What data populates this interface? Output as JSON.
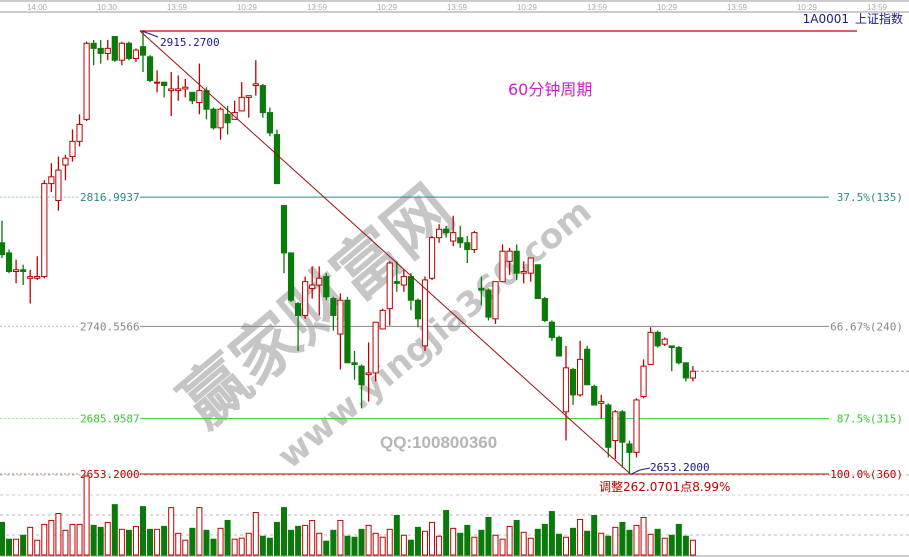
{
  "header": {
    "code": "1A0001",
    "name": "上证指数"
  },
  "chart_title": "60分钟周期",
  "watermark": {
    "brand": "赢家财富网",
    "url": "www.yingjia360.com",
    "qq": "QQ:100800360"
  },
  "colors": {
    "up": "#c00000",
    "down": "#0a7a0a",
    "peak_line": "#c00000",
    "trend_line": "#a01010",
    "fib_375": "#2a8a8a",
    "fib_6667": "#888888",
    "fib_875": "#33cc33",
    "fib_100": "#c00000",
    "label_navy": "#1a1a8c"
  },
  "chart_data": {
    "type": "candlestick",
    "time_ticks": [
      "14:00",
      "10:30",
      "13:59",
      "10:29",
      "13:59",
      "10:29",
      "13:59",
      "10:29",
      "13:59",
      "10:29",
      "13:59",
      "10:29",
      "13:59"
    ],
    "ylim": [
      2653.2,
      2915.27
    ],
    "peak": {
      "value": 2915.27,
      "label": "2915.2700"
    },
    "trough": {
      "value": 2653.2,
      "label": "2653.2000"
    },
    "retracement_note": "调整262.0701点8.99%",
    "levels": [
      {
        "value": 2816.9937,
        "left_label": "2816.9937",
        "right_label": "37.5%(135)",
        "color_key": "fib_375"
      },
      {
        "value": 2740.5566,
        "left_label": "2740.5566",
        "right_label": "66.67%(240)",
        "color_key": "fib_6667"
      },
      {
        "value": 2685.9587,
        "left_label": "2685.9587",
        "right_label": "87.5%(315)",
        "color_key": "fib_875"
      },
      {
        "value": 2653.2,
        "left_label": "2653.2000",
        "right_label": "100.0%(360)",
        "color_key": "fib_100"
      }
    ],
    "ohlc_fields": [
      "open",
      "high",
      "low",
      "close"
    ],
    "candles": [
      [
        2790,
        2803,
        2781,
        2783
      ],
      [
        2784,
        2786,
        2772,
        2773
      ],
      [
        2773,
        2780,
        2766,
        2774
      ],
      [
        2774,
        2777,
        2765,
        2773
      ],
      [
        2769,
        2774,
        2754,
        2770
      ],
      [
        2769,
        2782,
        2768,
        2770
      ],
      [
        2770,
        2827,
        2769,
        2825
      ],
      [
        2825,
        2837,
        2820,
        2829
      ],
      [
        2815,
        2841,
        2809,
        2833
      ],
      [
        2836,
        2842,
        2827,
        2840
      ],
      [
        2841,
        2857,
        2838,
        2850
      ],
      [
        2850,
        2866,
        2847,
        2860
      ],
      [
        2863,
        2909,
        2862,
        2908
      ],
      [
        2908,
        2910,
        2895,
        2905
      ],
      [
        2905,
        2910,
        2896,
        2902
      ],
      [
        2902,
        2910,
        2898,
        2905
      ],
      [
        2912,
        2912,
        2897,
        2898
      ],
      [
        2898,
        2909,
        2895,
        2908
      ],
      [
        2908,
        2909,
        2898,
        2899
      ],
      [
        2899,
        2905,
        2897,
        2904
      ],
      [
        2906,
        2915.27,
        2891,
        2901
      ],
      [
        2900,
        2901,
        2885,
        2886
      ],
      [
        2885,
        2892,
        2879,
        2885
      ],
      [
        2885,
        2885,
        2876,
        2883
      ],
      [
        2880,
        2891,
        2865,
        2881
      ],
      [
        2880,
        2889,
        2874,
        2881
      ],
      [
        2881,
        2887,
        2876,
        2882
      ],
      [
        2879,
        2879,
        2872,
        2874
      ],
      [
        2873,
        2896,
        2866,
        2880
      ],
      [
        2880,
        2882,
        2863,
        2869
      ],
      [
        2869,
        2870,
        2857,
        2858
      ],
      [
        2858,
        2870,
        2851,
        2869
      ],
      [
        2866,
        2871,
        2854,
        2861
      ],
      [
        2863,
        2874,
        2863,
        2867
      ],
      [
        2868,
        2885,
        2868,
        2876
      ],
      [
        2876,
        2877,
        2864,
        2877
      ],
      [
        2883,
        2898,
        2877,
        2884
      ],
      [
        2883,
        2884,
        2864,
        2867
      ],
      [
        2867,
        2870,
        2853,
        2855
      ],
      [
        2854,
        2857,
        2825,
        2825
      ],
      [
        2812,
        2812,
        2772,
        2784
      ],
      [
        2784,
        2784,
        2755,
        2756
      ],
      [
        2754,
        2755,
        2726,
        2747
      ],
      [
        2747,
        2770,
        2745,
        2767
      ],
      [
        2763,
        2776,
        2757,
        2765
      ],
      [
        2765,
        2776,
        2747,
        2769
      ],
      [
        2770,
        2772,
        2756,
        2758
      ],
      [
        2757,
        2758,
        2738,
        2747
      ],
      [
        2736,
        2760,
        2715,
        2756
      ],
      [
        2756,
        2758,
        2719,
        2719
      ],
      [
        2719,
        2726,
        2709,
        2718
      ],
      [
        2717,
        2718,
        2692,
        2706
      ],
      [
        2712,
        2731,
        2696,
        2713
      ],
      [
        2713,
        2743,
        2708,
        2743
      ],
      [
        2739,
        2751,
        2739,
        2750
      ],
      [
        2751,
        2779,
        2741,
        2778
      ],
      [
        2767,
        2779,
        2761,
        2766
      ],
      [
        2765,
        2774,
        2761,
        2770
      ],
      [
        2770,
        2772,
        2750,
        2756
      ],
      [
        2756,
        2757,
        2740,
        2745
      ],
      [
        2729,
        2770,
        2726,
        2768
      ],
      [
        2769,
        2794,
        2768,
        2793
      ],
      [
        2793,
        2801,
        2790,
        2798
      ],
      [
        2798,
        2800,
        2793,
        2796
      ],
      [
        2791,
        2806,
        2788,
        2796
      ],
      [
        2793,
        2800,
        2787,
        2790
      ],
      [
        2790,
        2794,
        2778,
        2786
      ],
      [
        2786,
        2797,
        2784,
        2796
      ],
      [
        2763,
        2770,
        2753,
        2762
      ],
      [
        2762,
        2763,
        2744,
        2746
      ],
      [
        2745,
        2767,
        2742,
        2767
      ],
      [
        2767,
        2789,
        2767,
        2785
      ],
      [
        2779,
        2787,
        2771,
        2785
      ],
      [
        2785,
        2789,
        2768,
        2772
      ],
      [
        2772,
        2779,
        2766,
        2773
      ],
      [
        2772,
        2781,
        2767,
        2781
      ],
      [
        2777,
        2777,
        2757,
        2757
      ],
      [
        2757,
        2758,
        2743,
        2744
      ],
      [
        2743,
        2744,
        2732,
        2734
      ],
      [
        2734,
        2735,
        2723,
        2723
      ],
      [
        2690,
        2729,
        2673,
        2716
      ],
      [
        2715,
        2716,
        2694,
        2700
      ],
      [
        2700,
        2732,
        2699,
        2721
      ],
      [
        2727,
        2729,
        2706,
        2706
      ],
      [
        2705,
        2706,
        2694,
        2694
      ],
      [
        2695,
        2700,
        2686,
        2696
      ],
      [
        2694,
        2695,
        2663,
        2669
      ],
      [
        2673,
        2691,
        2662,
        2690
      ],
      [
        2690,
        2691,
        2657,
        2672
      ],
      [
        2671,
        2673,
        2653.2,
        2666
      ],
      [
        2666,
        2698,
        2663,
        2697
      ],
      [
        2699,
        2721,
        2698,
        2717
      ],
      [
        2718,
        2740,
        2718,
        2737
      ],
      [
        2737,
        2738,
        2728,
        2729
      ],
      [
        2730,
        2734,
        2729,
        2733
      ],
      [
        2729,
        2729,
        2714,
        2728
      ],
      [
        2728,
        2729,
        2718,
        2719
      ],
      [
        2719,
        2719,
        2708,
        2710
      ],
      [
        2710,
        2717,
        2708,
        2714
      ]
    ],
    "volume": [
      33,
      16,
      16,
      20,
      28,
      15,
      31,
      35,
      42,
      25,
      31,
      31,
      80,
      30,
      28,
      33,
      51,
      26,
      25,
      29,
      49,
      26,
      26,
      29,
      48,
      22,
      15,
      27,
      48,
      25,
      16,
      27,
      35,
      16,
      17,
      22,
      43,
      19,
      17,
      33,
      48,
      25,
      29,
      30,
      35,
      22,
      14,
      25,
      35,
      19,
      18,
      26,
      30,
      22,
      18,
      26,
      40,
      20,
      15,
      28,
      24,
      33,
      19,
      45,
      27,
      22,
      30,
      18,
      25,
      38,
      20,
      16,
      29,
      35,
      23,
      17,
      26,
      31,
      44,
      21,
      18,
      27,
      36,
      24,
      40,
      22,
      19,
      28,
      33,
      25,
      30,
      38,
      21,
      26,
      17,
      20,
      31,
      19,
      15
    ],
    "last_price": 2714
  }
}
